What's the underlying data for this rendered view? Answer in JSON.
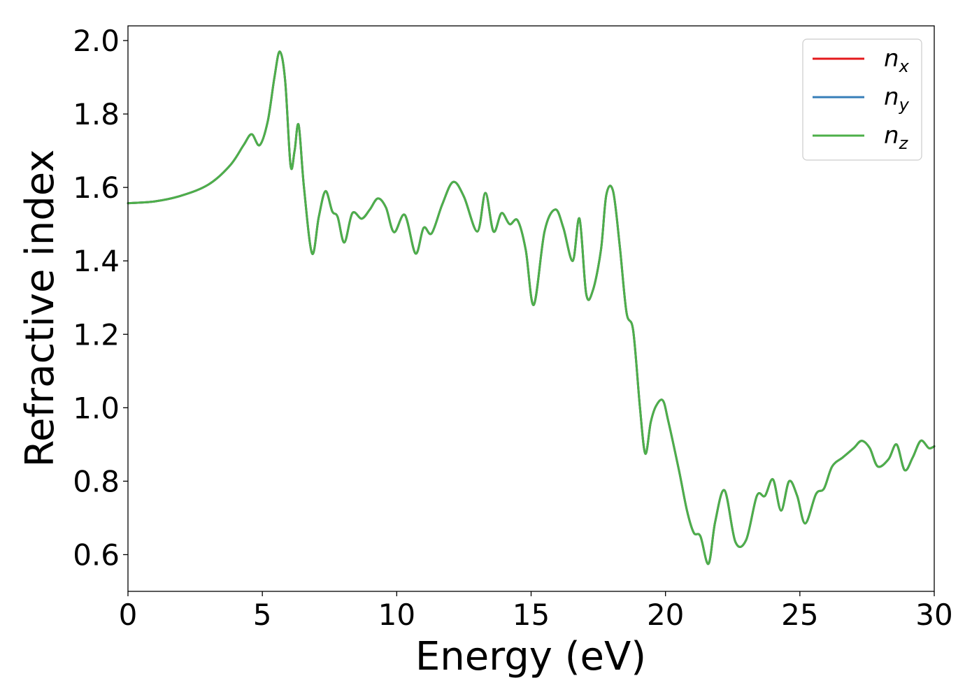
{
  "chart_data": {
    "type": "line",
    "xlabel": "Energy (eV)",
    "ylabel": "Refractive index",
    "xlim": [
      0,
      30
    ],
    "ylim": [
      0.5,
      2.04
    ],
    "xticks": [
      "0",
      "5",
      "10",
      "15",
      "20",
      "25",
      "30"
    ],
    "xtick_values": [
      0,
      5,
      10,
      15,
      20,
      25,
      30
    ],
    "yticks": [
      "0.6",
      "0.8",
      "1.0",
      "1.2",
      "1.4",
      "1.6",
      "1.8",
      "2.0"
    ],
    "ytick_values": [
      0.6,
      0.8,
      1.0,
      1.2,
      1.4,
      1.6,
      1.8,
      2.0
    ],
    "grid": false,
    "legend_position": "top-right",
    "series": [
      {
        "name": "n_x",
        "label_base": "n",
        "label_sub": "x",
        "color": "#e41a1c",
        "x": [
          0,
          1,
          2,
          3,
          3.8,
          4.3,
          4.6,
          4.9,
          5.2,
          5.45,
          5.65,
          5.85,
          6.05,
          6.2,
          6.35,
          6.55,
          6.85,
          7.1,
          7.35,
          7.6,
          7.8,
          8.05,
          8.35,
          8.7,
          9.0,
          9.3,
          9.6,
          9.9,
          10.3,
          10.7,
          11.0,
          11.3,
          11.7,
          12.1,
          12.5,
          13.0,
          13.3,
          13.6,
          13.9,
          14.2,
          14.5,
          14.8,
          15.1,
          15.5,
          15.9,
          16.2,
          16.55,
          16.8,
          17.05,
          17.3,
          17.6,
          17.8,
          18.05,
          18.3,
          18.55,
          18.8,
          19.05,
          19.25,
          19.45,
          19.65,
          19.9,
          20.1,
          20.5,
          20.8,
          21.05,
          21.3,
          21.6,
          21.85,
          22.2,
          22.6,
          23.0,
          23.4,
          23.7,
          24.0,
          24.3,
          24.6,
          24.9,
          25.2,
          25.6,
          25.9,
          26.2,
          26.6,
          27.0,
          27.3,
          27.6,
          27.9,
          28.3,
          28.6,
          28.9,
          29.2,
          29.5,
          29.8,
          30.0
        ],
        "y": [
          1.557,
          1.562,
          1.578,
          1.608,
          1.66,
          1.715,
          1.745,
          1.715,
          1.78,
          1.9,
          1.97,
          1.89,
          1.66,
          1.7,
          1.77,
          1.6,
          1.42,
          1.52,
          1.59,
          1.535,
          1.52,
          1.45,
          1.53,
          1.515,
          1.54,
          1.57,
          1.545,
          1.478,
          1.525,
          1.42,
          1.49,
          1.475,
          1.555,
          1.615,
          1.575,
          1.48,
          1.585,
          1.48,
          1.53,
          1.5,
          1.51,
          1.43,
          1.28,
          1.48,
          1.54,
          1.49,
          1.4,
          1.515,
          1.31,
          1.32,
          1.43,
          1.58,
          1.59,
          1.44,
          1.26,
          1.21,
          1.0,
          0.875,
          0.96,
          1.005,
          1.02,
          0.965,
          0.83,
          0.72,
          0.66,
          0.65,
          0.575,
          0.69,
          0.775,
          0.635,
          0.64,
          0.76,
          0.76,
          0.805,
          0.72,
          0.8,
          0.76,
          0.685,
          0.765,
          0.78,
          0.84,
          0.865,
          0.89,
          0.91,
          0.89,
          0.84,
          0.86,
          0.9,
          0.83,
          0.865,
          0.91,
          0.89,
          0.895
        ]
      },
      {
        "name": "n_y",
        "label_base": "n",
        "label_sub": "y",
        "color": "#377eb8",
        "x": [
          0,
          1,
          2,
          3,
          3.8,
          4.3,
          4.6,
          4.9,
          5.2,
          5.45,
          5.65,
          5.85,
          6.05,
          6.2,
          6.35,
          6.55,
          6.85,
          7.1,
          7.35,
          7.6,
          7.8,
          8.05,
          8.35,
          8.7,
          9.0,
          9.3,
          9.6,
          9.9,
          10.3,
          10.7,
          11.0,
          11.3,
          11.7,
          12.1,
          12.5,
          13.0,
          13.3,
          13.6,
          13.9,
          14.2,
          14.5,
          14.8,
          15.1,
          15.5,
          15.9,
          16.2,
          16.55,
          16.8,
          17.05,
          17.3,
          17.6,
          17.8,
          18.05,
          18.3,
          18.55,
          18.8,
          19.05,
          19.25,
          19.45,
          19.65,
          19.9,
          20.1,
          20.5,
          20.8,
          21.05,
          21.3,
          21.6,
          21.85,
          22.2,
          22.6,
          23.0,
          23.4,
          23.7,
          24.0,
          24.3,
          24.6,
          24.9,
          25.2,
          25.6,
          25.9,
          26.2,
          26.6,
          27.0,
          27.3,
          27.6,
          27.9,
          28.3,
          28.6,
          28.9,
          29.2,
          29.5,
          29.8,
          30.0
        ],
        "y": [
          1.557,
          1.562,
          1.578,
          1.608,
          1.66,
          1.715,
          1.745,
          1.715,
          1.78,
          1.9,
          1.97,
          1.89,
          1.66,
          1.7,
          1.77,
          1.6,
          1.42,
          1.52,
          1.59,
          1.535,
          1.52,
          1.45,
          1.53,
          1.515,
          1.54,
          1.57,
          1.545,
          1.478,
          1.525,
          1.42,
          1.49,
          1.475,
          1.555,
          1.615,
          1.575,
          1.48,
          1.585,
          1.48,
          1.53,
          1.5,
          1.51,
          1.43,
          1.28,
          1.48,
          1.54,
          1.49,
          1.4,
          1.515,
          1.31,
          1.32,
          1.43,
          1.58,
          1.59,
          1.44,
          1.26,
          1.21,
          1.0,
          0.875,
          0.96,
          1.005,
          1.02,
          0.965,
          0.83,
          0.72,
          0.66,
          0.65,
          0.575,
          0.69,
          0.775,
          0.635,
          0.64,
          0.76,
          0.76,
          0.805,
          0.72,
          0.8,
          0.76,
          0.685,
          0.765,
          0.78,
          0.84,
          0.865,
          0.89,
          0.91,
          0.89,
          0.84,
          0.86,
          0.9,
          0.83,
          0.865,
          0.91,
          0.89,
          0.895
        ]
      },
      {
        "name": "n_z",
        "label_base": "n",
        "label_sub": "z",
        "color": "#4daf4a",
        "x": [
          0,
          1,
          2,
          3,
          3.8,
          4.3,
          4.6,
          4.9,
          5.2,
          5.45,
          5.65,
          5.85,
          6.05,
          6.2,
          6.35,
          6.55,
          6.85,
          7.1,
          7.35,
          7.6,
          7.8,
          8.05,
          8.35,
          8.7,
          9.0,
          9.3,
          9.6,
          9.9,
          10.3,
          10.7,
          11.0,
          11.3,
          11.7,
          12.1,
          12.5,
          13.0,
          13.3,
          13.6,
          13.9,
          14.2,
          14.5,
          14.8,
          15.1,
          15.5,
          15.9,
          16.2,
          16.55,
          16.8,
          17.05,
          17.3,
          17.6,
          17.8,
          18.05,
          18.3,
          18.55,
          18.8,
          19.05,
          19.25,
          19.45,
          19.65,
          19.9,
          20.1,
          20.5,
          20.8,
          21.05,
          21.3,
          21.6,
          21.85,
          22.2,
          22.6,
          23.0,
          23.4,
          23.7,
          24.0,
          24.3,
          24.6,
          24.9,
          25.2,
          25.6,
          25.9,
          26.2,
          26.6,
          27.0,
          27.3,
          27.6,
          27.9,
          28.3,
          28.6,
          28.9,
          29.2,
          29.5,
          29.8,
          30.0
        ],
        "y": [
          1.557,
          1.562,
          1.578,
          1.608,
          1.66,
          1.715,
          1.745,
          1.715,
          1.78,
          1.9,
          1.97,
          1.89,
          1.66,
          1.7,
          1.77,
          1.6,
          1.42,
          1.52,
          1.59,
          1.535,
          1.52,
          1.45,
          1.53,
          1.515,
          1.54,
          1.57,
          1.545,
          1.478,
          1.525,
          1.42,
          1.49,
          1.475,
          1.555,
          1.615,
          1.575,
          1.48,
          1.585,
          1.48,
          1.53,
          1.5,
          1.51,
          1.43,
          1.28,
          1.48,
          1.54,
          1.49,
          1.4,
          1.515,
          1.31,
          1.32,
          1.43,
          1.58,
          1.59,
          1.44,
          1.26,
          1.21,
          1.0,
          0.875,
          0.96,
          1.005,
          1.02,
          0.965,
          0.83,
          0.72,
          0.66,
          0.65,
          0.575,
          0.69,
          0.775,
          0.635,
          0.64,
          0.76,
          0.76,
          0.805,
          0.72,
          0.8,
          0.76,
          0.685,
          0.765,
          0.78,
          0.84,
          0.865,
          0.89,
          0.91,
          0.89,
          0.84,
          0.86,
          0.9,
          0.83,
          0.865,
          0.91,
          0.89,
          0.895
        ]
      }
    ]
  }
}
